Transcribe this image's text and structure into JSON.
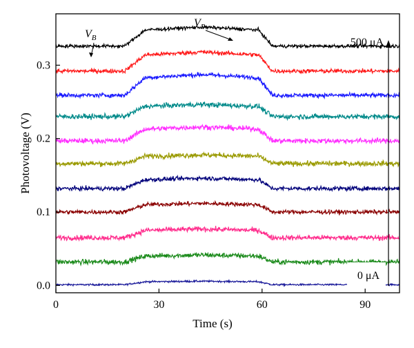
{
  "chart_data": {
    "type": "line",
    "title": "",
    "xlabel": "Time (s)",
    "ylabel": "Photovoltage (V)",
    "xlim": [
      0,
      100
    ],
    "ylim": [
      -0.01,
      0.37
    ],
    "x_ticks": [
      0,
      30,
      60,
      90
    ],
    "x_tick_labels": [
      "0",
      "30",
      "60",
      "90"
    ],
    "y_ticks": [
      0.0,
      0.1,
      0.2,
      0.3
    ],
    "y_tick_labels": [
      "0.0",
      "0.1",
      "0.2",
      "0.3"
    ],
    "grid": false,
    "legend": "none",
    "pulse": {
      "on_start": 20,
      "on_full": 26,
      "off_start": 59,
      "off_end": 63
    },
    "series": [
      {
        "baseline": 0.001,
        "amplitude": 0.004,
        "noise": 0.002,
        "color": "#1a1a9a"
      },
      {
        "baseline": 0.032,
        "amplitude": 0.008,
        "noise": 0.006,
        "color": "#1a8a1a"
      },
      {
        "baseline": 0.065,
        "amplitude": 0.01,
        "noise": 0.006,
        "color": "#ff2c8c"
      },
      {
        "baseline": 0.1,
        "amplitude": 0.01,
        "noise": 0.005,
        "color": "#8a0000"
      },
      {
        "baseline": 0.132,
        "amplitude": 0.012,
        "noise": 0.005,
        "color": "#00007a"
      },
      {
        "baseline": 0.166,
        "amplitude": 0.01,
        "noise": 0.006,
        "color": "#9a9a00"
      },
      {
        "baseline": 0.197,
        "amplitude": 0.016,
        "noise": 0.006,
        "color": "#ff30ff"
      },
      {
        "baseline": 0.23,
        "amplitude": 0.014,
        "noise": 0.006,
        "color": "#008a8a"
      },
      {
        "baseline": 0.259,
        "amplitude": 0.024,
        "noise": 0.005,
        "color": "#1a1aff"
      },
      {
        "baseline": 0.292,
        "amplitude": 0.022,
        "noise": 0.005,
        "color": "#ff1a1a"
      },
      {
        "baseline": 0.326,
        "amplitude": 0.022,
        "noise": 0.004,
        "color": "#000000"
      }
    ],
    "annotations": {
      "vb_label": "V",
      "vb_sub": "B",
      "vp_label": "V",
      "vp_sub": "P",
      "top_current": "500 μA",
      "bottom_current": "0 μA"
    }
  }
}
